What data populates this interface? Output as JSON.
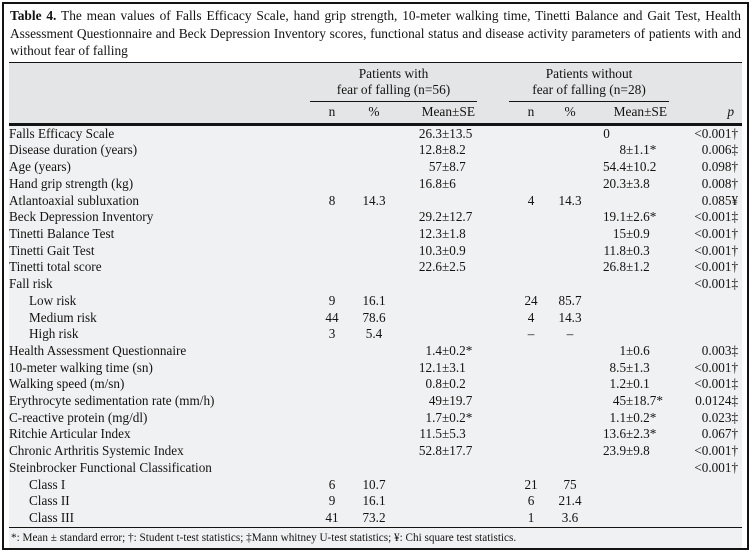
{
  "table": {
    "title_bold": "Table 4.",
    "title_rest": " The mean values of Falls Efficacy Scale, hand grip strength, 10-meter walking time, Tinetti Balance and Gait Test, Health Assessment Questionnaire and Beck Depression Inventory scores, functional status and disease activity parameters of patients with and without fear of falling",
    "groups": [
      {
        "line1": "Patients with",
        "line2": "fear of falling (n=56)"
      },
      {
        "line1": "Patients without",
        "line2": "fear of falling (n=28)"
      }
    ],
    "subheaders": {
      "n": "n",
      "percent": "%",
      "mean_se": "Mean±SE",
      "p": "p"
    },
    "rows": [
      {
        "label": "Falls Efficacy Scale",
        "indent": false,
        "n1": "",
        "pct1": "",
        "mean1": "26.3±13.5",
        "n2": "",
        "pct2": "",
        "mean2": "0",
        "p": "<0.001†"
      },
      {
        "label": "Disease duration (years)",
        "indent": false,
        "n1": "",
        "pct1": "",
        "mean1": "12.8±8.2",
        "n2": "",
        "pct2": "",
        "mean2": "8±1.1*",
        "p": "0.006‡"
      },
      {
        "label": "Age (years)",
        "indent": false,
        "n1": "",
        "pct1": "",
        "mean1": "57±8.7",
        "n2": "",
        "pct2": "",
        "mean2": "54.4±10.2",
        "p": "0.098†"
      },
      {
        "label": "Hand grip strength (kg)",
        "indent": false,
        "n1": "",
        "pct1": "",
        "mean1": "16.8±6",
        "n2": "",
        "pct2": "",
        "mean2": "20.3±3.8",
        "p": "0.008†"
      },
      {
        "label": "Atlantoaxial subluxation",
        "indent": false,
        "n1": "8",
        "pct1": "14.3",
        "mean1": "",
        "n2": "4",
        "pct2": "14.3",
        "mean2": "",
        "p": "0.085¥"
      },
      {
        "label": "Beck Depression Inventory",
        "indent": false,
        "n1": "",
        "pct1": "",
        "mean1": "29.2±12.7",
        "n2": "",
        "pct2": "",
        "mean2": "19.1±2.6*",
        "p": "<0.001‡"
      },
      {
        "label": "Tinetti Balance Test",
        "indent": false,
        "n1": "",
        "pct1": "",
        "mean1": "12.3±1.8",
        "n2": "",
        "pct2": "",
        "mean2": "15±0.9",
        "p": "<0.001†"
      },
      {
        "label": "Tinetti Gait Test",
        "indent": false,
        "n1": "",
        "pct1": "",
        "mean1": "10.3±0.9",
        "n2": "",
        "pct2": "",
        "mean2": "11.8±0.3",
        "p": "<0.001†"
      },
      {
        "label": "Tinetti total score",
        "indent": false,
        "n1": "",
        "pct1": "",
        "mean1": "22.6±2.5",
        "n2": "",
        "pct2": "",
        "mean2": "26.8±1.2",
        "p": "<0.001†"
      },
      {
        "label": "Fall risk",
        "indent": false,
        "n1": "",
        "pct1": "",
        "mean1": "",
        "n2": "",
        "pct2": "",
        "mean2": "",
        "p": "<0.001‡"
      },
      {
        "label": "Low risk",
        "indent": true,
        "n1": "9",
        "pct1": "16.1",
        "mean1": "",
        "n2": "24",
        "pct2": "85.7",
        "mean2": "",
        "p": ""
      },
      {
        "label": "Medium risk",
        "indent": true,
        "n1": "44",
        "pct1": "78.6",
        "mean1": "",
        "n2": "4",
        "pct2": "14.3",
        "mean2": "",
        "p": ""
      },
      {
        "label": "High risk",
        "indent": true,
        "n1": "3",
        "pct1": "5.4",
        "mean1": "",
        "n2": "–",
        "pct2": "–",
        "mean2": "",
        "p": ""
      },
      {
        "label": "Health Assessment Questionnaire",
        "indent": false,
        "n1": "",
        "pct1": "",
        "mean1": "1.4±0.2*",
        "n2": "",
        "pct2": "",
        "mean2": "1±0.6",
        "p": "0.003‡"
      },
      {
        "label": "10-meter walking time (sn)",
        "indent": false,
        "n1": "",
        "pct1": "",
        "mean1": "12.1±3.1",
        "n2": "",
        "pct2": "",
        "mean2": "8.5±1.3",
        "p": "<0.001†"
      },
      {
        "label": "Walking speed (m/sn)",
        "indent": false,
        "n1": "",
        "pct1": "",
        "mean1": "0.8±0.2",
        "n2": "",
        "pct2": "",
        "mean2": "1.2±0.1",
        "p": "<0.001‡"
      },
      {
        "label": "Erythrocyte sedimentation rate (mm/h)",
        "indent": false,
        "n1": "",
        "pct1": "",
        "mean1": "49±19.7",
        "n2": "",
        "pct2": "",
        "mean2": "45±18.7*",
        "p": "0.0124‡"
      },
      {
        "label": "C-reactive protein (mg/dl)",
        "indent": false,
        "n1": "",
        "pct1": "",
        "mean1": "1.7±0.2*",
        "n2": "",
        "pct2": "",
        "mean2": "1.1±0.2*",
        "p": "0.023‡"
      },
      {
        "label": "Ritchie Articular Index",
        "indent": false,
        "n1": "",
        "pct1": "",
        "mean1": "11.5±5.3",
        "n2": "",
        "pct2": "",
        "mean2": "13.6±2.3*",
        "p": "0.067†"
      },
      {
        "label": "Chronic Arthritis Systemic Index",
        "indent": false,
        "n1": "",
        "pct1": "",
        "mean1": "52.8±17.7",
        "n2": "",
        "pct2": "",
        "mean2": "23.9±9.8",
        "p": "<0.001†"
      },
      {
        "label": "Steinbrocker Functional Classification",
        "indent": false,
        "n1": "",
        "pct1": "",
        "mean1": "",
        "n2": "",
        "pct2": "",
        "mean2": "",
        "p": "<0.001†"
      },
      {
        "label": "Class I",
        "indent": true,
        "n1": "6",
        "pct1": "10.7",
        "mean1": "",
        "n2": "21",
        "pct2": "75",
        "mean2": "",
        "p": ""
      },
      {
        "label": "Class II",
        "indent": true,
        "n1": "9",
        "pct1": "16.1",
        "mean1": "",
        "n2": "6",
        "pct2": "21.4",
        "mean2": "",
        "p": ""
      },
      {
        "label": "Class III",
        "indent": true,
        "n1": "41",
        "pct1": "73.2",
        "mean1": "",
        "n2": "1",
        "pct2": "3.6",
        "mean2": "",
        "p": ""
      }
    ],
    "footnote": "*: Mean ± standard error; †: Student t-test statistics; ‡Mann whitney U-test statistics; ¥: Chi square test statistics."
  }
}
